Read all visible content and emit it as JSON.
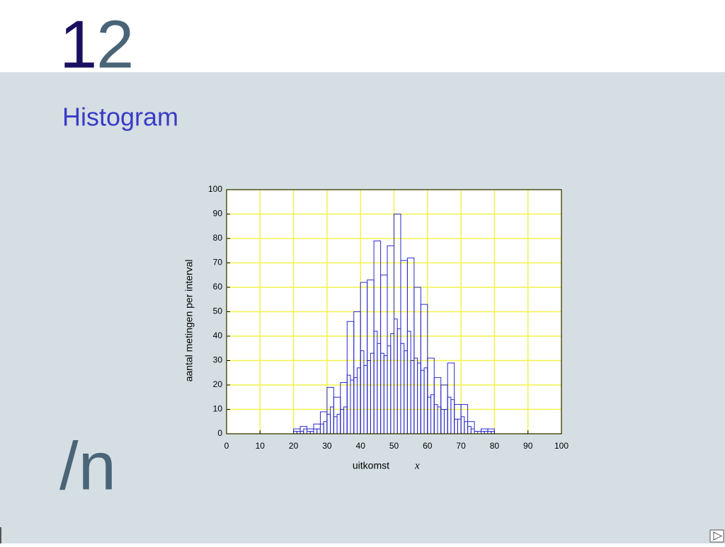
{
  "slide": {
    "number": [
      "1",
      "2"
    ],
    "title": "Histogram",
    "footer": "/n"
  },
  "chart_data": {
    "type": "histogram",
    "xlabel": "uitkomst",
    "xlabel_symbol": "x",
    "ylabel": "aantal metingen per interval",
    "xlim": [
      0,
      100
    ],
    "ylim": [
      0,
      100
    ],
    "xticks": [
      0,
      10,
      20,
      30,
      40,
      50,
      60,
      70,
      80,
      90,
      100
    ],
    "yticks": [
      0,
      10,
      20,
      30,
      40,
      50,
      60,
      70,
      80,
      90,
      100
    ],
    "grid": true,
    "grid_color": "#f2f24a",
    "series": [
      {
        "color": "#2a2acc",
        "bins": [
          20,
          22,
          24,
          26,
          28,
          30,
          32,
          34,
          36,
          38,
          40,
          42,
          44,
          46,
          48,
          50,
          52,
          54,
          56,
          58,
          60,
          62,
          64,
          66,
          68,
          70,
          72,
          74,
          76,
          78,
          80
        ],
        "values": [
          2,
          3,
          2,
          4,
          9,
          19,
          15,
          21,
          46,
          50,
          62,
          63,
          79,
          65,
          77,
          90,
          71,
          72,
          60,
          53,
          31,
          23,
          20,
          29,
          12,
          12,
          5,
          1,
          2,
          2
        ]
      },
      {
        "color": "#2a2acc",
        "bins": [
          20,
          21,
          22,
          23,
          24,
          25,
          26,
          27,
          28,
          29,
          30,
          31,
          32,
          33,
          34,
          35,
          36,
          37,
          38,
          39,
          40,
          41,
          42,
          43,
          44,
          45,
          46,
          47,
          48,
          49,
          50,
          51,
          52,
          53,
          54,
          55,
          56,
          57,
          58,
          59,
          60,
          61,
          62,
          63,
          64,
          65,
          66,
          67,
          68,
          69,
          70,
          71,
          72,
          73,
          74,
          75,
          76,
          77,
          78,
          79,
          80
        ],
        "values": [
          1,
          1,
          1,
          2,
          1,
          1,
          2,
          2,
          4,
          5,
          8,
          11,
          7,
          8,
          10,
          11,
          24,
          22,
          23,
          27,
          34,
          28,
          30,
          33,
          42,
          37,
          33,
          32,
          36,
          41,
          47,
          43,
          37,
          34,
          42,
          30,
          31,
          29,
          26,
          27,
          15,
          16,
          12,
          11,
          10,
          10,
          15,
          14,
          6,
          6,
          7,
          5,
          3,
          2,
          1,
          0,
          1,
          1,
          1,
          1
        ]
      }
    ]
  }
}
